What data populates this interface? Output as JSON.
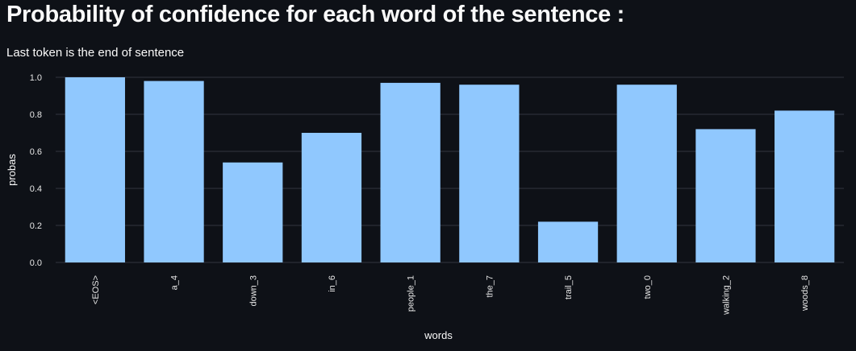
{
  "page": {
    "title": "Probability of confidence for each word of the sentence :",
    "subtitle": "Last token is the end of sentence"
  },
  "colors": {
    "background": "#0e1117",
    "bar": "#90c8fe",
    "grid": "#31353f",
    "text": "#fafafa",
    "tick_text": "#e6e6e6"
  },
  "chart_data": {
    "type": "bar",
    "xlabel": "words",
    "ylabel": "probas",
    "ylim": [
      0,
      1.0
    ],
    "yticks": [
      0.0,
      0.2,
      0.4,
      0.6,
      0.8,
      1.0
    ],
    "ytick_labels": [
      "0.0",
      "0.2",
      "0.4",
      "0.6",
      "0.8",
      "1.0"
    ],
    "grid": true,
    "categories": [
      "<EOS>",
      "a_4",
      "down_3",
      "in_6",
      "people_1",
      "the_7",
      "trail_5",
      "two_0",
      "walking_2",
      "woods_8"
    ],
    "values": [
      1.0,
      0.98,
      0.54,
      0.7,
      0.97,
      0.96,
      0.22,
      0.96,
      0.72,
      0.82
    ]
  }
}
